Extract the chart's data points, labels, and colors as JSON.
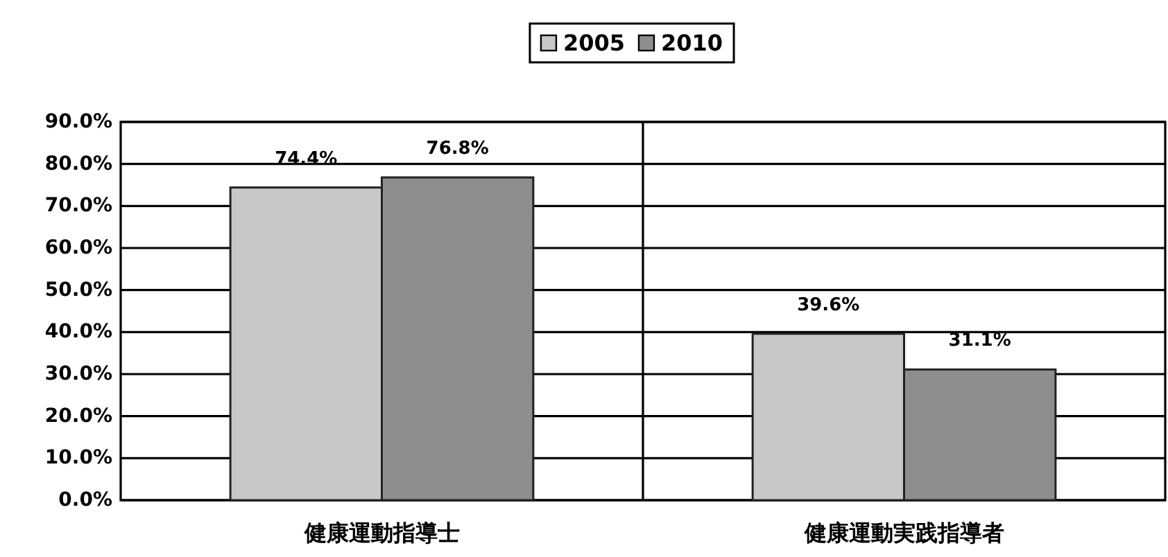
{
  "chart_data": {
    "type": "bar",
    "categories": [
      "健康運動指導士",
      "健康運動実践指導者"
    ],
    "series": [
      {
        "name": "2005",
        "color": "#c8c8c8",
        "values": [
          74.4,
          39.6
        ],
        "value_labels": [
          "74.4%",
          "39.6%"
        ]
      },
      {
        "name": "2010",
        "color": "#8e8e8e",
        "values": [
          76.8,
          31.1
        ],
        "value_labels": [
          "76.8%",
          "31.1%"
        ]
      }
    ],
    "ylim": [
      0,
      90
    ],
    "yticks": [
      {
        "value": 0,
        "label": "0.0%"
      },
      {
        "value": 10,
        "label": "10.0%"
      },
      {
        "value": 20,
        "label": "20.0%"
      },
      {
        "value": 30,
        "label": "30.0%"
      },
      {
        "value": 40,
        "label": "40.0%"
      },
      {
        "value": 50,
        "label": "50.0%"
      },
      {
        "value": 60,
        "label": "60.0%"
      },
      {
        "value": 70,
        "label": "70.0%"
      },
      {
        "value": 80,
        "label": "80.0%"
      },
      {
        "value": 90,
        "label": "90.0%"
      }
    ],
    "grid": true,
    "legend": "top"
  }
}
